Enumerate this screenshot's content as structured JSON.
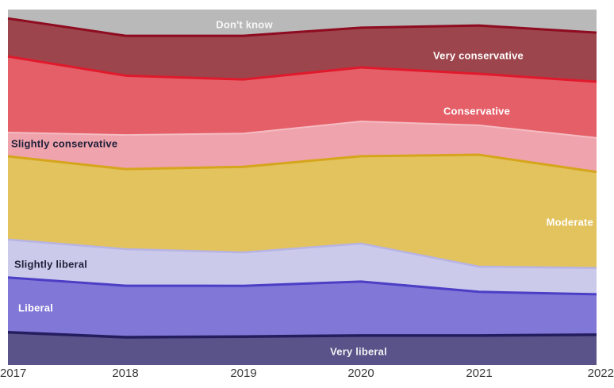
{
  "chart_data": {
    "type": "area",
    "stacked": true,
    "normalized_percent": true,
    "title": "",
    "xlabel": "",
    "ylabel": "",
    "ylim": [
      0,
      100
    ],
    "grid": false,
    "legend": "inline-labels",
    "x": [
      "2017",
      "2018",
      "2019",
      "2020",
      "2021",
      "2022"
    ],
    "series": [
      {
        "name": "Don't know",
        "fill": "#b9b9b9",
        "stroke": "none",
        "stroke_width": 0,
        "label_color": "#f7f7f7",
        "values": [
          2.5,
          7.4,
          7.4,
          5.1,
          4.5,
          6.5
        ]
      },
      {
        "name": "Very conservative",
        "fill": "#9c454c",
        "stroke": "#8e0b20",
        "stroke_width": 3,
        "label_color": "#ffffff",
        "values": [
          10.7,
          11.2,
          12.3,
          11.2,
          13.6,
          13.8
        ]
      },
      {
        "name": "Conservative",
        "fill": "#e55f68",
        "stroke": "#e01a2c",
        "stroke_width": 3,
        "label_color": "#ffffff",
        "values": [
          21.4,
          16.7,
          15.2,
          15.2,
          14.5,
          15.8
        ]
      },
      {
        "name": "Slightly conservative",
        "fill": "#efa3ac",
        "stroke": "#f5bcc2",
        "stroke_width": 2,
        "label_color": "#20203a",
        "values": [
          6.7,
          9.6,
          9.4,
          9.8,
          8.3,
          9.6
        ]
      },
      {
        "name": "Moderate",
        "fill": "#e3c35e",
        "stroke": "#d5a51b",
        "stroke_width": 3,
        "label_color": "#ffffff",
        "values": [
          23.4,
          22.5,
          24.1,
          24.6,
          31.5,
          27.0
        ]
      },
      {
        "name": "Slightly liberal",
        "fill": "#cbcaeb",
        "stroke": "#b7b4e4",
        "stroke_width": 2.5,
        "label_color": "#20203a",
        "values": [
          10.7,
          10.3,
          9.4,
          10.7,
          7.1,
          7.4
        ]
      },
      {
        "name": "Liberal",
        "fill": "#8177d7",
        "stroke": "#4c3ec5",
        "stroke_width": 3,
        "label_color": "#ffffff",
        "values": [
          15.4,
          14.5,
          14.3,
          15.2,
          12.3,
          11.4
        ]
      },
      {
        "name": "Very liberal",
        "fill": "#5a5389",
        "stroke": "#241e5f",
        "stroke_width": 3.5,
        "label_color": "#f2f2f5",
        "values": [
          9.2,
          7.8,
          8.0,
          8.3,
          8.3,
          8.5
        ]
      }
    ]
  },
  "axis": {
    "tick_color": "#3b3b3b"
  }
}
